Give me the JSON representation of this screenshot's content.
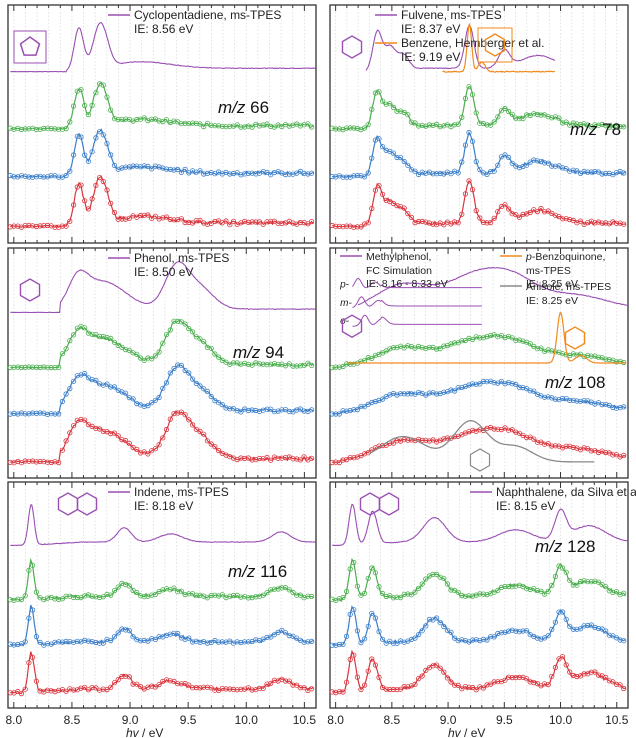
{
  "chart_data": {
    "type": "line",
    "xlabel_italic": "hv",
    "xlabel_rest": " / eV",
    "xlim": [
      7.95,
      10.6
    ],
    "x_ticks": [
      "8.0",
      "8.5",
      "9.0",
      "9.5",
      "10.0",
      "10.5"
    ],
    "grid": true,
    "series_colors": {
      "ref": "#9a4fb3",
      "green": "#4caf4f",
      "blue": "#3c7fc9",
      "red": "#d9363e",
      "orange": "#f28a1c",
      "gray": "#8a8a8a"
    },
    "panels": [
      {
        "id": "66",
        "mz_italic": "m/z",
        "mz_value": " 66",
        "legend": [
          {
            "name": "Cyclopentadiene, ms-TPES",
            "color": "#9a4fb3",
            "ie": "IE: 8.56 eV"
          }
        ],
        "peaks": [
          [
            8.56,
            1.0,
            0.04
          ],
          [
            8.72,
            0.7,
            0.05
          ],
          [
            8.78,
            0.55,
            0.05
          ],
          [
            9.1,
            0.15,
            0.25
          ]
        ],
        "onset": 8.5,
        "ref_end": 10.6
      },
      {
        "id": "78",
        "mz_italic": "m/z",
        "mz_value": " 78",
        "legend": [
          {
            "name": "Fulvene, ms-TPES",
            "color": "#9a4fb3",
            "ie": "IE: 8.37 eV"
          },
          {
            "name": "Benzene, Hemberger et al.",
            "color": "#f28a1c",
            "ie": "IE: 9.19 eV"
          }
        ],
        "peaks": [
          [
            8.37,
            0.9,
            0.04
          ],
          [
            8.48,
            0.55,
            0.05
          ],
          [
            8.6,
            0.35,
            0.05
          ],
          [
            9.19,
            1.0,
            0.04
          ],
          [
            9.5,
            0.4,
            0.05
          ],
          [
            9.8,
            0.3,
            0.15
          ]
        ],
        "onset": 8.3,
        "ref_end": 9.95
      },
      {
        "id": "94",
        "mz_italic": "m/z",
        "mz_value": " 94",
        "legend": [
          {
            "name": "Phenol, ms-TPES",
            "color": "#9a4fb3",
            "ie": "IE: 8.50 eV"
          }
        ],
        "peaks": [
          [
            8.55,
            0.55,
            0.08
          ],
          [
            8.75,
            0.7,
            0.2
          ],
          [
            9.4,
            1.0,
            0.1
          ],
          [
            9.6,
            0.5,
            0.12
          ]
        ],
        "onset": 8.45,
        "ref_end": 10.6
      },
      {
        "id": "108",
        "mz_italic": "m/z",
        "mz_value": " 108",
        "legend": [
          {
            "name": "Methylphenol,",
            "color": "#9a4fb3",
            "line2": "FC Simulation",
            "ie": "IE: 8.16 - 8.33 eV"
          },
          {
            "name": "p-Benzoquinone,",
            "color": "#f28a1c",
            "line2": "ms-TPES",
            "ie": "IE: 8.25 eV"
          },
          {
            "name": "Anisole, ms-TPES",
            "color": "#8a8a8a",
            "ie": "IE: 8.25 eV"
          }
        ],
        "isomer_labels": [
          "p-",
          "m-",
          "o-"
        ],
        "peaks": [
          [
            8.6,
            0.6,
            0.25
          ],
          [
            9.25,
            0.8,
            0.25
          ],
          [
            9.6,
            0.5,
            0.2
          ],
          [
            10.1,
            0.35,
            0.3
          ]
        ],
        "onset": 8.1,
        "ref_end": 10.6
      },
      {
        "id": "116",
        "mz_italic": "m/z",
        "mz_value": " 116",
        "legend": [
          {
            "name": "Indene, ms-TPES",
            "color": "#9a4fb3",
            "ie": "IE: 8.18 eV"
          }
        ],
        "peaks": [
          [
            8.15,
            1.0,
            0.025
          ],
          [
            8.95,
            0.35,
            0.06
          ],
          [
            9.35,
            0.2,
            0.1
          ],
          [
            10.3,
            0.25,
            0.08
          ]
        ],
        "onset": 8.1,
        "ref_end": 10.6
      },
      {
        "id": "128",
        "mz_italic": "m/z",
        "mz_value": " 128",
        "legend": [
          {
            "name": "Naphthalene, da Silva et al.",
            "color": "#9a4fb3",
            "ie": "IE: 8.15 eV"
          }
        ],
        "peaks": [
          [
            8.15,
            1.0,
            0.03
          ],
          [
            8.33,
            0.8,
            0.04
          ],
          [
            8.88,
            0.6,
            0.1
          ],
          [
            9.6,
            0.3,
            0.15
          ],
          [
            10.0,
            0.7,
            0.05
          ],
          [
            10.25,
            0.4,
            0.15
          ]
        ],
        "onset": 8.1,
        "ref_end": 10.6
      }
    ]
  }
}
